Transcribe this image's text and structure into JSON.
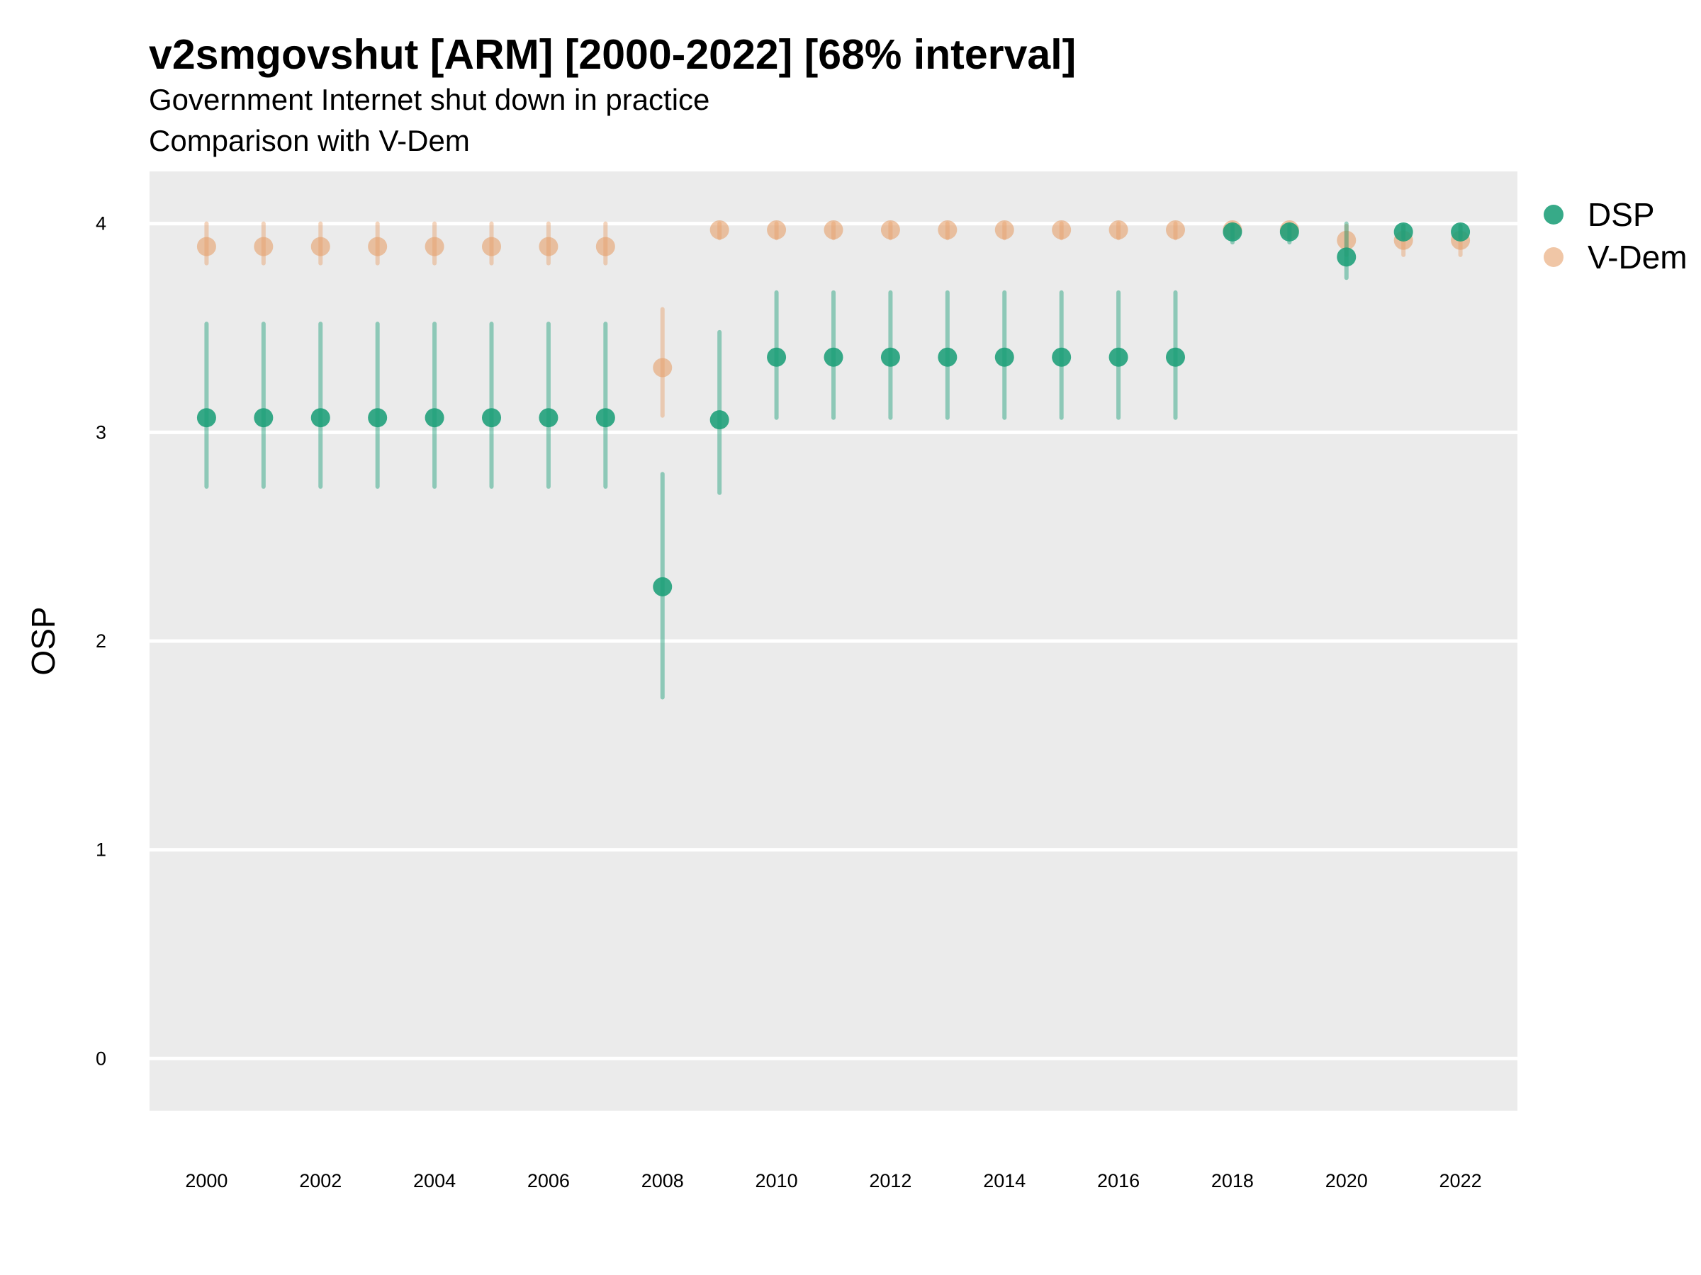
{
  "chart_data": {
    "type": "scatter",
    "title": "v2smgovshut [ARM] [2000-2022] [68% interval]",
    "subtitle": [
      "Government Internet shut down in practice",
      "Comparison with V-Dem"
    ],
    "xlabel": "",
    "ylabel": "OSP",
    "x": [
      2000,
      2001,
      2002,
      2003,
      2004,
      2005,
      2006,
      2007,
      2008,
      2009,
      2010,
      2011,
      2012,
      2013,
      2014,
      2015,
      2016,
      2017,
      2018,
      2019,
      2020,
      2021,
      2022
    ],
    "xticks": [
      "2000",
      "2002",
      "2004",
      "2006",
      "2008",
      "2010",
      "2012",
      "2014",
      "2016",
      "2018",
      "2020",
      "2022"
    ],
    "yticks": [
      "0",
      "1",
      "2",
      "3",
      "4"
    ],
    "xlim": [
      1999,
      2023
    ],
    "ylim": [
      -0.25,
      4.25
    ],
    "grid": true,
    "legend_position": "right",
    "series": [
      {
        "name": "V-Dem",
        "color": "#e6a06a",
        "values": [
          3.89,
          3.89,
          3.89,
          3.89,
          3.89,
          3.89,
          3.89,
          3.89,
          3.31,
          3.97,
          3.97,
          3.97,
          3.97,
          3.97,
          3.97,
          3.97,
          3.97,
          3.97,
          3.97,
          3.97,
          3.92,
          3.92,
          3.92
        ],
        "lower": [
          3.81,
          3.81,
          3.81,
          3.81,
          3.81,
          3.81,
          3.81,
          3.81,
          3.08,
          3.93,
          3.93,
          3.93,
          3.93,
          3.93,
          3.93,
          3.93,
          3.93,
          3.93,
          3.93,
          3.93,
          3.85,
          3.85,
          3.85
        ],
        "upper": [
          4.0,
          4.0,
          4.0,
          4.0,
          4.0,
          4.0,
          4.0,
          4.0,
          3.59,
          4.0,
          4.0,
          4.0,
          4.0,
          4.0,
          4.0,
          4.0,
          4.0,
          4.0,
          4.0,
          4.0,
          3.99,
          3.99,
          3.99
        ]
      },
      {
        "name": "DSP",
        "color": "#1b9e77",
        "values": [
          3.07,
          3.07,
          3.07,
          3.07,
          3.07,
          3.07,
          3.07,
          3.07,
          2.26,
          3.06,
          3.36,
          3.36,
          3.36,
          3.36,
          3.36,
          3.36,
          3.36,
          3.36,
          3.96,
          3.96,
          3.84,
          3.96,
          3.96
        ],
        "lower": [
          2.74,
          2.74,
          2.74,
          2.74,
          2.74,
          2.74,
          2.74,
          2.74,
          1.73,
          2.71,
          3.07,
          3.07,
          3.07,
          3.07,
          3.07,
          3.07,
          3.07,
          3.07,
          3.91,
          3.91,
          3.74,
          3.93,
          3.93
        ],
        "upper": [
          3.52,
          3.52,
          3.52,
          3.52,
          3.52,
          3.52,
          3.52,
          3.52,
          2.8,
          3.48,
          3.67,
          3.67,
          3.67,
          3.67,
          3.67,
          3.67,
          3.67,
          3.67,
          3.99,
          3.99,
          4.0,
          3.99,
          3.99
        ]
      }
    ],
    "legend": [
      {
        "name": "DSP",
        "color": "#1b9e77"
      },
      {
        "name": "V-Dem",
        "color": "#e6a06a"
      }
    ],
    "colors": {
      "panel": "#ebebeb",
      "grid": "#ffffff"
    }
  }
}
